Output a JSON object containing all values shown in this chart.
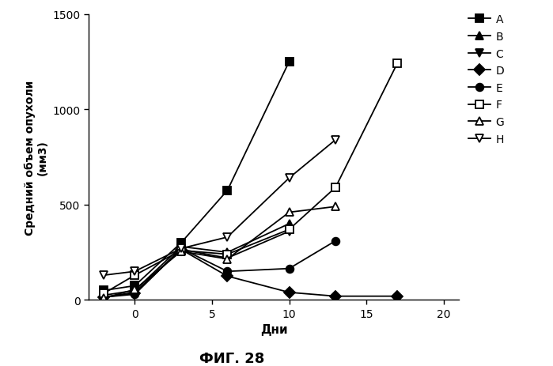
{
  "series": {
    "A": {
      "x": [
        -2,
        0,
        3,
        6,
        10
      ],
      "y": [
        50,
        75,
        300,
        575,
        1250
      ],
      "marker": "s",
      "filled": true,
      "label": "A"
    },
    "B": {
      "x": [
        -2,
        0,
        3,
        6,
        10
      ],
      "y": [
        25,
        50,
        280,
        250,
        400
      ],
      "marker": "^",
      "filled": true,
      "label": "B"
    },
    "C": {
      "x": [
        -2,
        0,
        3,
        6,
        10
      ],
      "y": [
        15,
        40,
        265,
        220,
        360
      ],
      "marker": "v",
      "filled": true,
      "label": "C"
    },
    "D": {
      "x": [
        -2,
        0,
        3,
        6,
        10,
        13,
        17
      ],
      "y": [
        15,
        35,
        265,
        125,
        40,
        20,
        20
      ],
      "marker": "D",
      "filled": true,
      "label": "D"
    },
    "E": {
      "x": [
        -2,
        0,
        3,
        6,
        10,
        13
      ],
      "y": [
        15,
        30,
        270,
        150,
        165,
        310
      ],
      "marker": "o",
      "filled": true,
      "label": "E"
    },
    "F": {
      "x": [
        -2,
        0,
        3,
        6,
        10,
        13,
        17
      ],
      "y": [
        35,
        130,
        260,
        240,
        370,
        590,
        1240
      ],
      "marker": "s",
      "filled": false,
      "label": "F"
    },
    "G": {
      "x": [
        -2,
        0,
        3,
        6,
        10,
        13
      ],
      "y": [
        10,
        55,
        255,
        215,
        460,
        490
      ],
      "marker": "^",
      "filled": false,
      "label": "G"
    },
    "H": {
      "x": [
        -2,
        0,
        3,
        6,
        10,
        13
      ],
      "y": [
        130,
        150,
        270,
        330,
        640,
        840
      ],
      "marker": "v",
      "filled": false,
      "label": "H"
    }
  },
  "xlabel": "Дни",
  "ylabel_line1": "Средний объем опухоли",
  "ylabel_line2": "(мм3)",
  "title": "ФИГ. 28",
  "xlim": [
    -3,
    21
  ],
  "ylim": [
    0,
    1500
  ],
  "xticks": [
    0,
    5,
    10,
    15,
    20
  ],
  "yticks": [
    0,
    500,
    1000,
    1500
  ],
  "background_color": "#ffffff",
  "markersize": 7,
  "linewidth": 1.3
}
